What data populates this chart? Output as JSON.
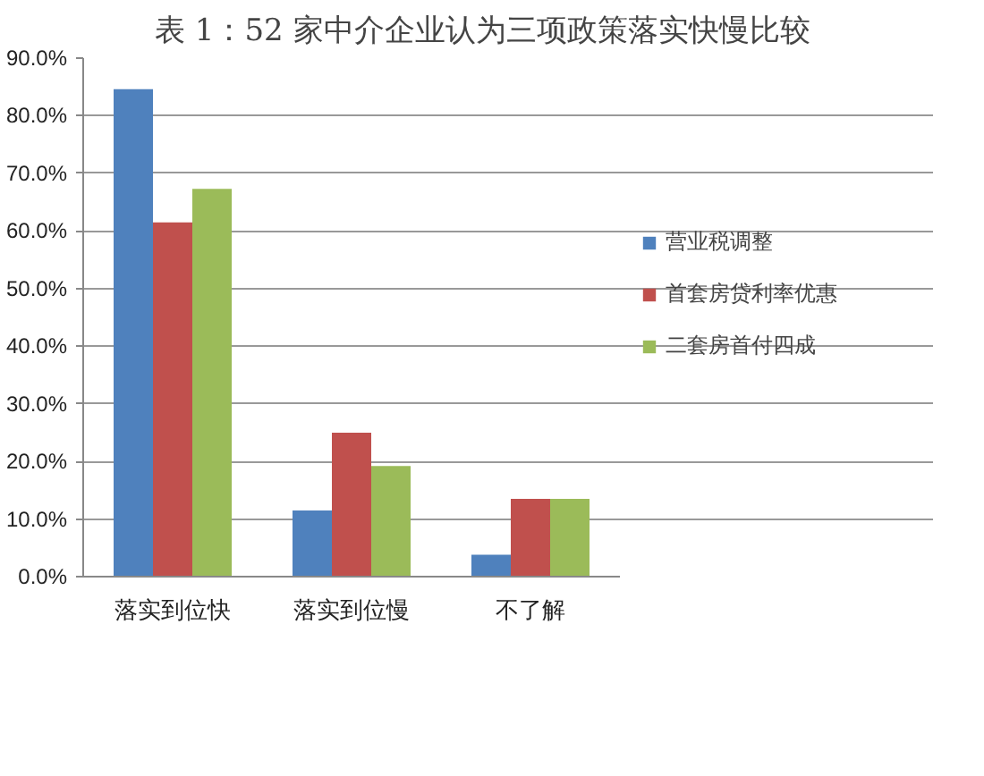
{
  "chart_data": {
    "type": "bar",
    "title": "表 1：52 家中介企业认为三项政策落实快慢比较",
    "categories": [
      "落实到位快",
      "落实到位慢",
      "不了解"
    ],
    "series": [
      {
        "name": "营业税调整",
        "color": "#4f81bd",
        "values": [
          84.6,
          11.5,
          3.8
        ]
      },
      {
        "name": "首套房贷利率优惠",
        "color": "#c0504d",
        "values": [
          61.5,
          25.0,
          13.5
        ]
      },
      {
        "name": "二套房首付四成",
        "color": "#9bbb59",
        "values": [
          67.3,
          19.2,
          13.5
        ]
      }
    ],
    "ylim": [
      0,
      90
    ],
    "yticks": [
      {
        "value": 0,
        "label": "0.0%"
      },
      {
        "value": 10,
        "label": "10.0%"
      },
      {
        "value": 20,
        "label": "20.0%"
      },
      {
        "value": 30,
        "label": "30.0%"
      },
      {
        "value": 40,
        "label": "40.0%"
      },
      {
        "value": 50,
        "label": "50.0%"
      },
      {
        "value": 60,
        "label": "60.0%"
      },
      {
        "value": 70,
        "label": "70.0%"
      },
      {
        "value": 80,
        "label": "80.0%"
      },
      {
        "value": 90,
        "label": "90.0%"
      }
    ],
    "grid": "y",
    "legend": "right"
  }
}
